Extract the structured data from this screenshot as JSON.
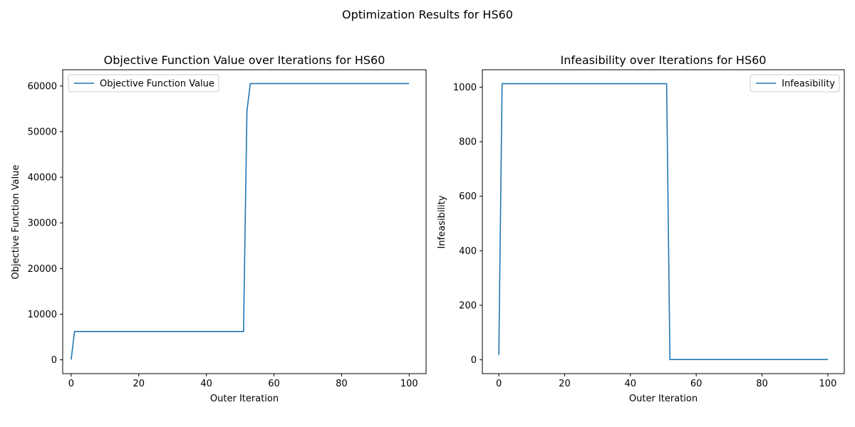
{
  "figure": {
    "title": "Optimization Results for HS60"
  },
  "chart_data": [
    {
      "type": "line",
      "title": "Objective Function Value over Iterations for HS60",
      "xlabel": "Outer Iteration",
      "ylabel": "Objective Function Value",
      "xlim": [
        -2.5,
        105.0
      ],
      "ylim": [
        -3027.5,
        63560.0
      ],
      "xticks": [
        0,
        20,
        40,
        60,
        80,
        100
      ],
      "xtick_labels": [
        "0",
        "20",
        "40",
        "60",
        "80",
        "100"
      ],
      "yticks": [
        0,
        10000,
        20000,
        30000,
        40000,
        50000,
        60000
      ],
      "ytick_labels": [
        "0",
        "10000",
        "20000",
        "30000",
        "40000",
        "50000",
        "60000"
      ],
      "legend": "upper left",
      "grid": false,
      "series": [
        {
          "name": "Objective Function Value",
          "color": "#1f77b4",
          "x": [
            0,
            1,
            51,
            52,
            53,
            100
          ],
          "y": [
            40,
            6200,
            6200,
            54500,
            60530,
            60530
          ]
        }
      ]
    },
    {
      "type": "line",
      "title": "Infeasibility over Iterations for HS60",
      "xlabel": "Outer Iteration",
      "ylabel": "Infeasibility",
      "xlim": [
        -5.0,
        105.0
      ],
      "ylim": [
        -50.7,
        1064.0
      ],
      "xticks": [
        0,
        20,
        40,
        60,
        80,
        100
      ],
      "xtick_labels": [
        "0",
        "20",
        "40",
        "60",
        "80",
        "100"
      ],
      "yticks": [
        0,
        200,
        400,
        600,
        800,
        1000
      ],
      "ytick_labels": [
        "0",
        "200",
        "400",
        "600",
        "800",
        "1000"
      ],
      "legend": "upper right",
      "grid": false,
      "series": [
        {
          "name": "Infeasibility",
          "color": "#1f77b4",
          "x": [
            0,
            1,
            51,
            52,
            100
          ],
          "y": [
            18,
            1013,
            1013,
            1,
            1
          ]
        }
      ]
    }
  ]
}
